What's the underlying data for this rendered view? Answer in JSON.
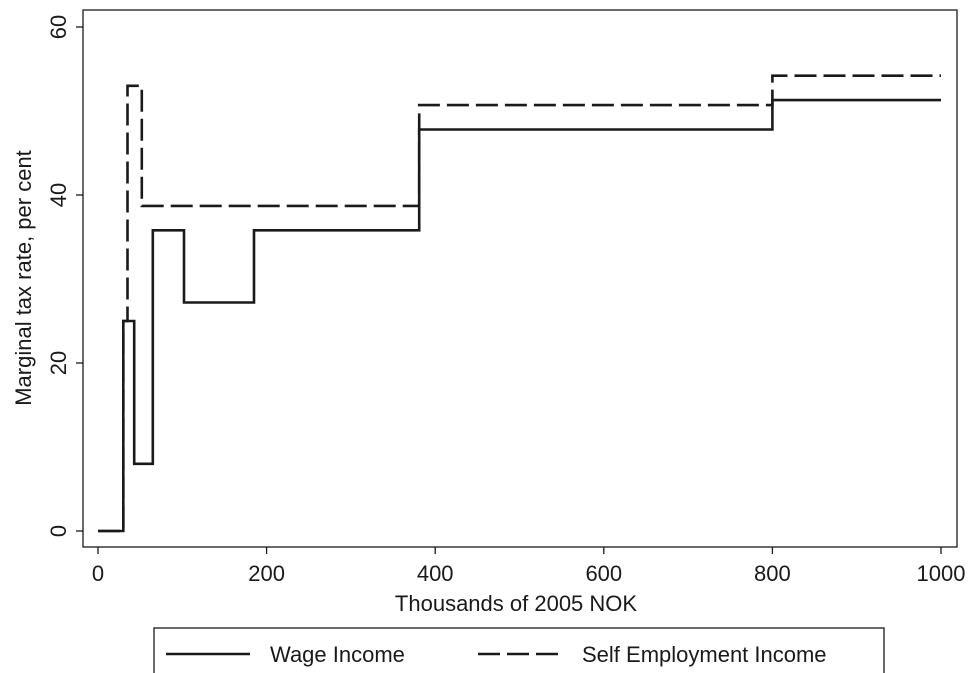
{
  "chart_data": {
    "type": "line",
    "title": "",
    "xlabel": "Thousands of 2005 NOK",
    "ylabel": "Marginal tax rate, per cent",
    "xlim": [
      0,
      1000
    ],
    "ylim": [
      0,
      60
    ],
    "xticks": [
      0,
      200,
      400,
      600,
      800,
      1000
    ],
    "yticks": [
      0,
      20,
      40,
      60
    ],
    "grid": false,
    "legend_position": "bottom",
    "series": [
      {
        "name": "Wage Income",
        "style": "solid",
        "color": "#1a1a1a",
        "x": [
          0,
          30,
          30,
          43,
          43,
          65,
          65,
          102,
          102,
          185,
          185,
          381,
          381,
          800,
          800,
          1000
        ],
        "y": [
          0,
          0,
          25,
          25,
          8,
          8,
          35.8,
          35.8,
          27.2,
          27.2,
          35.8,
          35.8,
          47.8,
          47.8,
          51.3,
          51.3
        ]
      },
      {
        "name": "Self Employment Income",
        "style": "dashed",
        "color": "#1a1a1a",
        "x": [
          0,
          30,
          30,
          35,
          35,
          52,
          52,
          381,
          381,
          800,
          800,
          1000
        ],
        "y": [
          0,
          0,
          25,
          25,
          53,
          53,
          38.7,
          38.7,
          50.7,
          50.7,
          54.2,
          54.2
        ]
      }
    ]
  }
}
